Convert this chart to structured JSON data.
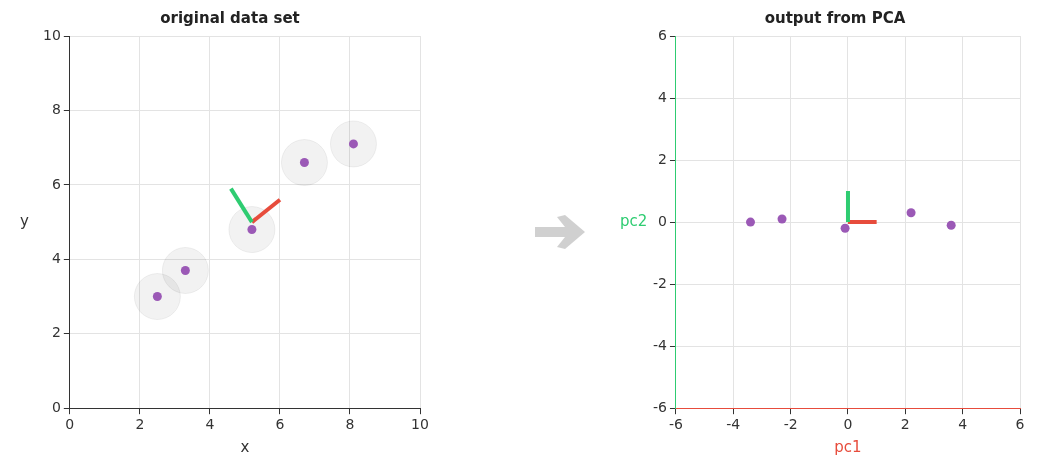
{
  "chart_data": [
    {
      "type": "scatter",
      "title": "original data set",
      "xlabel": "x",
      "ylabel": "y",
      "xlim": [
        0,
        10
      ],
      "ylim": [
        0,
        10
      ],
      "xticks": [
        0,
        2,
        4,
        6,
        8,
        10
      ],
      "yticks": [
        0,
        2,
        4,
        6,
        8,
        10
      ],
      "grid": true,
      "marker": "circle",
      "legend": false,
      "series": [
        {
          "color": "#9b59b6",
          "x": [
            2.5,
            3.3,
            5.2,
            6.7,
            8.1
          ],
          "values": [
            3.0,
            3.7,
            4.8,
            6.6,
            7.1
          ]
        },
        {
          "type": "line",
          "marker": "none",
          "color": "#2ecc71",
          "x": [
            5.2,
            4.6
          ],
          "values": [
            5.0,
            5.9
          ]
        },
        {
          "type": "line",
          "marker": "none",
          "color": "#e74c3c",
          "x": [
            5.2,
            6.0
          ],
          "values": [
            5.0,
            5.6
          ]
        }
      ]
    },
    {
      "type": "scatter",
      "title": "output from PCA",
      "xlabel": "pc1",
      "ylabel": "pc2",
      "xlim": [
        -6,
        6
      ],
      "ylim": [
        -6,
        6
      ],
      "xticks": [
        -6,
        -4,
        -2,
        0,
        2,
        4,
        6
      ],
      "yticks": [
        -6,
        -4,
        -2,
        0,
        2,
        4,
        6
      ],
      "grid": true,
      "marker": "circle",
      "legend": false,
      "series": [
        {
          "color": "#9b59b6",
          "x": [
            -3.4,
            -2.3,
            -0.1,
            2.2,
            3.6
          ],
          "values": [
            0.0,
            0.1,
            -0.2,
            0.3,
            -0.1
          ]
        },
        {
          "type": "line",
          "marker": "none",
          "color": "#2ecc71",
          "x": [
            0,
            0
          ],
          "values": [
            0,
            1
          ]
        },
        {
          "type": "line",
          "marker": "none",
          "color": "#e74c3c",
          "x": [
            0,
            1
          ],
          "values": [
            0,
            0
          ]
        }
      ]
    }
  ]
}
